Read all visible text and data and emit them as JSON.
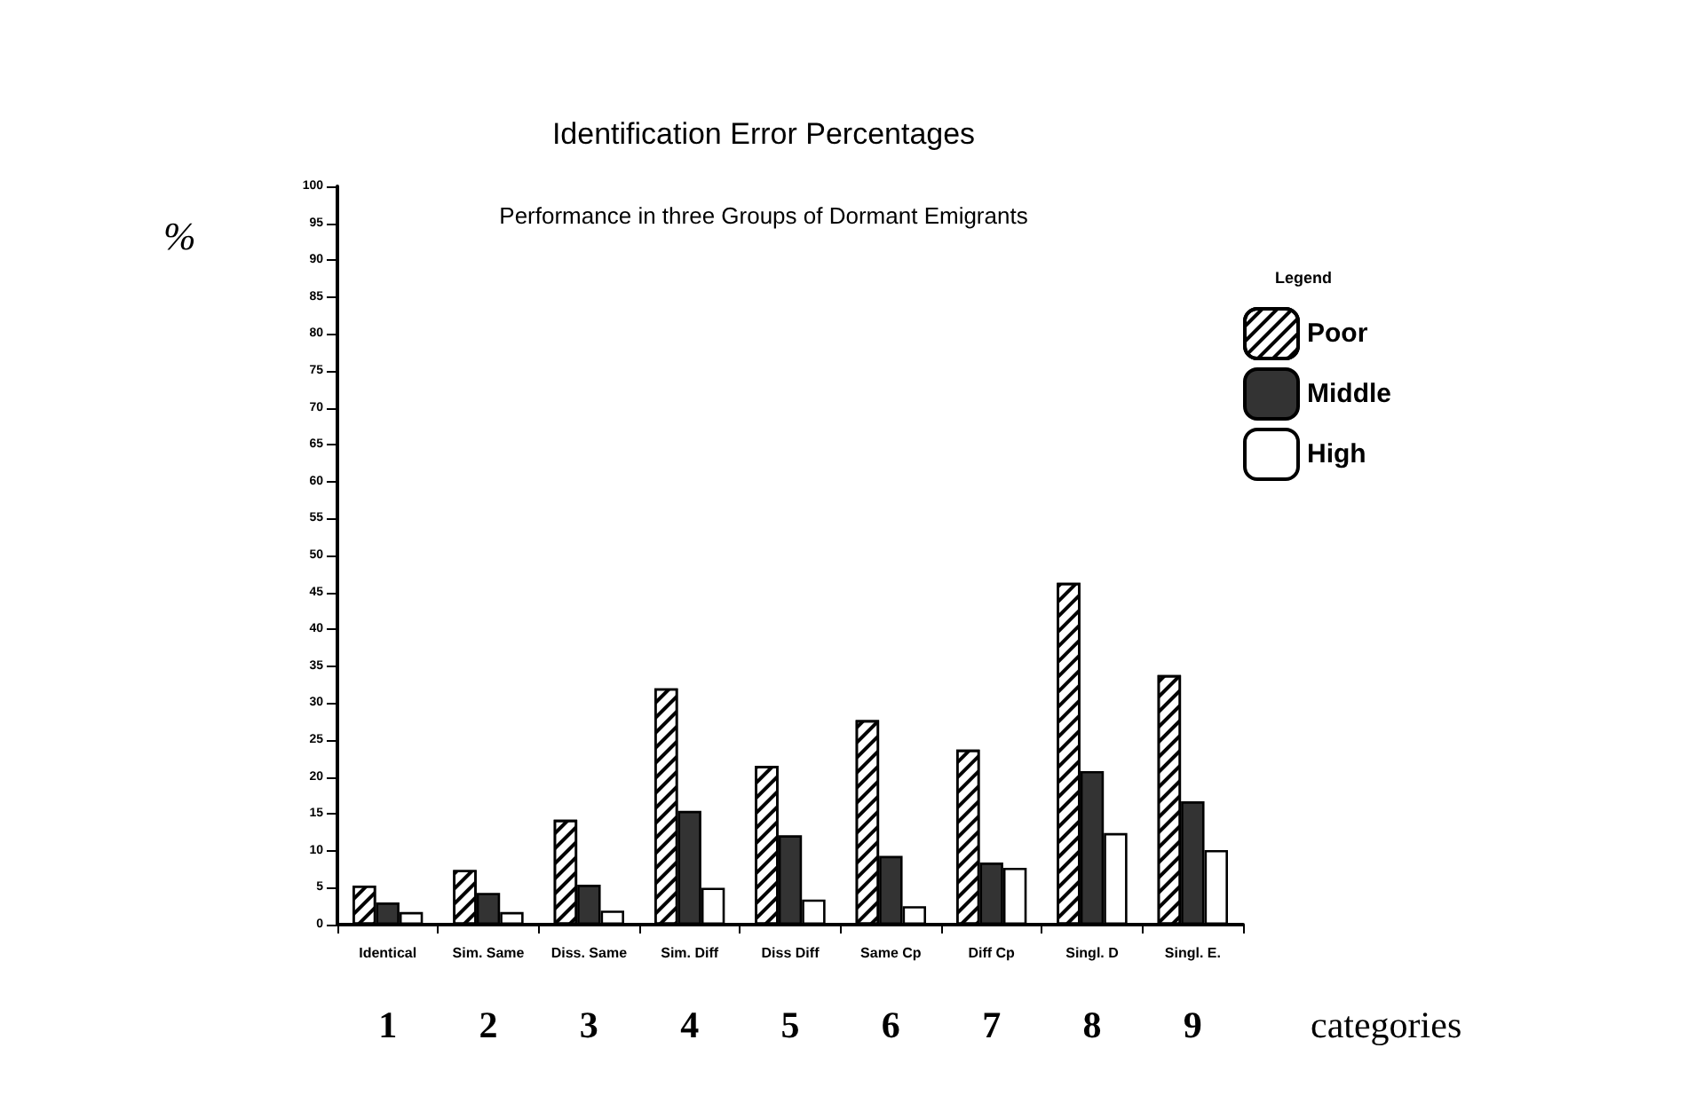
{
  "chart_data": {
    "type": "bar",
    "title": "Identification Error Percentages",
    "subtitle": "Performance in three Groups of Dormant Emigrants",
    "xlabel": "categories",
    "ylabel": "%",
    "legend_title": "Legend",
    "categories": [
      "Identical",
      "Sim. Same",
      "Diss. Same",
      "Sim. Diff",
      "Diss Diff",
      "Same Cp",
      "Diff Cp",
      "Singl. D",
      "Singl. E."
    ],
    "series": [
      {
        "name": "Poor",
        "color": "#ffffff",
        "values": [
          5.3,
          7.4,
          14.2,
          32,
          21.5,
          27.7,
          23.7,
          46.3,
          33.8
        ]
      },
      {
        "name": "Middle",
        "color": "#333333",
        "values": [
          3,
          4.3,
          5.4,
          15.4,
          12.1,
          9.3,
          8.4,
          20.8,
          16.7
        ]
      },
      {
        "name": "High",
        "color": "#ffffff",
        "values": [
          1.7,
          1.7,
          1.9,
          5,
          3.4,
          2.5,
          7.7,
          12.4,
          10.1
        ]
      }
    ],
    "annotations": [
      "1",
      "2",
      "3",
      "4",
      "5",
      "6",
      "7",
      "8",
      "9"
    ],
    "ylim": [
      0,
      100
    ],
    "yticks": [
      0,
      5,
      10,
      15,
      20,
      25,
      30,
      35,
      40,
      45,
      50,
      55,
      60,
      65,
      70,
      75,
      80,
      85,
      90,
      95,
      100
    ],
    "grid": false,
    "legend": "top right"
  }
}
